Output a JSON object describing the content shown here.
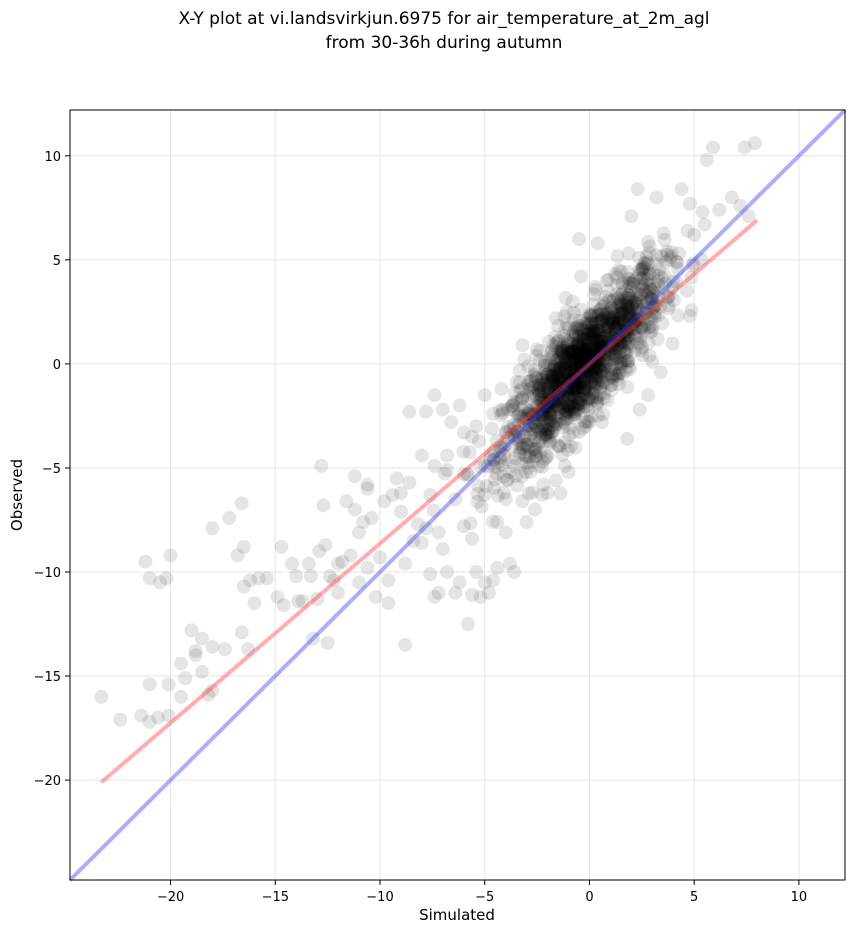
{
  "chart_data": {
    "type": "scatter",
    "title_line1": "X-Y plot at vi.landsvirkjun.6975 for air_temperature_at_2m_agl",
    "title_line2": "from 30-36h during autumn",
    "xlabel": "Simulated",
    "ylabel": "Observed",
    "xlim": [
      -24.8,
      12.2
    ],
    "ylim": [
      -24.8,
      12.2
    ],
    "xticks": [
      -20,
      -15,
      -10,
      -5,
      0,
      5,
      10
    ],
    "yticks": [
      -20,
      -15,
      -10,
      -5,
      0,
      5,
      10
    ],
    "xtick_labels": [
      "−20",
      "−15",
      "−10",
      "−5",
      "0",
      "5",
      "10"
    ],
    "ytick_labels": [
      "−20",
      "−15",
      "−10",
      "−5",
      "0",
      "5",
      "10"
    ],
    "grid": true,
    "point_color": "#000000",
    "point_alpha": 0.1,
    "outlier_points": [
      [
        -23.3,
        -16.0
      ],
      [
        -22.4,
        -17.1
      ],
      [
        -21.4,
        -16.9
      ],
      [
        -21.0,
        -17.2
      ],
      [
        -20.6,
        -17.0
      ],
      [
        -20.1,
        -16.9
      ],
      [
        -21.2,
        -9.5
      ],
      [
        -21.0,
        -10.3
      ],
      [
        -20.5,
        -10.5
      ],
      [
        -20.2,
        -10.3
      ],
      [
        -20.0,
        -9.2
      ],
      [
        -21.0,
        -15.4
      ],
      [
        -20.1,
        -15.4
      ],
      [
        -19.5,
        -16.0
      ],
      [
        -19.3,
        -15.1
      ],
      [
        -19.0,
        -12.8
      ],
      [
        -18.8,
        -13.8
      ],
      [
        -18.5,
        -13.2
      ],
      [
        -18.2,
        -15.9
      ],
      [
        -18.0,
        -15.7
      ],
      [
        -18.0,
        -13.6
      ],
      [
        -19.5,
        -14.4
      ],
      [
        -18.8,
        -14.0
      ],
      [
        -18.5,
        -14.8
      ],
      [
        -18.0,
        -7.9
      ],
      [
        -17.4,
        -13.7
      ],
      [
        -17.2,
        -7.4
      ],
      [
        -16.8,
        -9.2
      ],
      [
        -16.5,
        -8.8
      ],
      [
        -16.5,
        -10.7
      ],
      [
        -16.2,
        -10.4
      ],
      [
        -16.0,
        -11.5
      ],
      [
        -15.8,
        -10.3
      ],
      [
        -16.6,
        -12.9
      ],
      [
        -16.3,
        -13.7
      ],
      [
        -16.6,
        -6.7
      ],
      [
        -15.4,
        -10.3
      ],
      [
        -14.9,
        -11.2
      ],
      [
        -14.6,
        -11.6
      ],
      [
        -14.7,
        -8.8
      ],
      [
        -14.2,
        -9.6
      ],
      [
        -14.0,
        -10.2
      ],
      [
        -13.9,
        -11.4
      ],
      [
        -13.7,
        -11.4
      ],
      [
        -13.4,
        -9.6
      ],
      [
        -13.3,
        -10.2
      ],
      [
        -13.2,
        -13.2
      ],
      [
        -13.0,
        -11.3
      ],
      [
        -12.9,
        -9.0
      ],
      [
        -12.7,
        -6.8
      ],
      [
        -12.6,
        -8.7
      ],
      [
        -12.5,
        -13.4
      ],
      [
        -12.4,
        -10.2
      ],
      [
        -12.2,
        -10.4
      ],
      [
        -12.0,
        -9.6
      ],
      [
        -12.0,
        -11.0
      ],
      [
        -12.8,
        -4.9
      ],
      [
        -11.8,
        -9.5
      ],
      [
        -11.6,
        -6.6
      ],
      [
        -11.4,
        -9.2
      ],
      [
        -11.2,
        -7.0
      ],
      [
        -11.0,
        -10.5
      ],
      [
        -11.0,
        -8.1
      ],
      [
        -10.8,
        -7.6
      ],
      [
        -10.6,
        -9.8
      ],
      [
        -10.6,
        -6.0
      ],
      [
        -10.4,
        -7.4
      ],
      [
        -10.2,
        -11.2
      ],
      [
        -10.0,
        -9.3
      ],
      [
        -9.8,
        -6.6
      ],
      [
        -9.6,
        -10.4
      ],
      [
        -9.6,
        -11.5
      ],
      [
        -9.4,
        -6.3
      ],
      [
        -9.2,
        -5.5
      ],
      [
        -9.0,
        -7.1
      ],
      [
        -8.8,
        -13.5
      ],
      [
        -8.8,
        -9.6
      ],
      [
        -8.6,
        -5.7
      ],
      [
        -10.6,
        -5.8
      ],
      [
        -11.2,
        -5.4
      ],
      [
        -9.0,
        -6.2
      ],
      [
        -8.4,
        -8.5
      ],
      [
        -8.2,
        -7.7
      ],
      [
        -8.0,
        -4.4
      ],
      [
        -7.8,
        -2.3
      ],
      [
        -8.6,
        -2.3
      ],
      [
        -7.6,
        -10.1
      ],
      [
        -7.4,
        -11.2
      ],
      [
        -7.2,
        -11.0
      ],
      [
        -7.0,
        -8.9
      ],
      [
        -6.8,
        -10.0
      ],
      [
        -6.4,
        -11.0
      ],
      [
        -6.2,
        -10.5
      ],
      [
        -5.8,
        -12.5
      ],
      [
        -5.6,
        -11.1
      ],
      [
        -5.4,
        -10.0
      ],
      [
        -5.2,
        -11.2
      ],
      [
        -5.0,
        -10.5
      ],
      [
        -4.8,
        -11.0
      ],
      [
        -4.6,
        -10.4
      ],
      [
        -4.4,
        -9.8
      ],
      [
        -3.8,
        -9.6
      ],
      [
        -3.6,
        -10.0
      ],
      [
        -7.4,
        -1.5
      ],
      [
        -7.0,
        -2.2
      ],
      [
        -6.6,
        -2.8
      ],
      [
        -6.2,
        -2.0
      ],
      [
        -5.6,
        -3.5
      ],
      [
        -5.0,
        -1.5
      ],
      [
        -4.6,
        -2.4
      ],
      [
        -4.2,
        -1.2
      ],
      [
        -3.2,
        0.9
      ],
      [
        -2.8,
        -0.8
      ],
      [
        -1.6,
        2.2
      ],
      [
        -0.8,
        3.0
      ],
      [
        -0.4,
        4.2
      ],
      [
        -0.5,
        6.0
      ],
      [
        0.4,
        5.8
      ],
      [
        2.0,
        7.1
      ],
      [
        2.3,
        8.4
      ],
      [
        3.2,
        8.0
      ],
      [
        4.4,
        8.4
      ],
      [
        5.6,
        9.8
      ],
      [
        5.9,
        10.4
      ],
      [
        7.4,
        10.4
      ],
      [
        7.9,
        10.6
      ],
      [
        4.8,
        7.7
      ],
      [
        5.4,
        7.3
      ],
      [
        6.2,
        7.4
      ],
      [
        6.8,
        8.0
      ],
      [
        7.2,
        7.6
      ],
      [
        7.6,
        7.1
      ],
      [
        5.0,
        6.2
      ],
      [
        4.8,
        2.3
      ],
      [
        1.8,
        -3.6
      ],
      [
        2.4,
        -2.2
      ],
      [
        2.8,
        -1.5
      ],
      [
        3.0,
        0.1
      ],
      [
        3.4,
        -0.4
      ],
      [
        0.6,
        -2.8
      ],
      [
        -1.0,
        -5.2
      ],
      [
        -1.6,
        -5.6
      ],
      [
        -2.0,
        -6.2
      ],
      [
        -2.2,
        -5.8
      ],
      [
        -2.6,
        -7.0
      ],
      [
        -3.0,
        -7.6
      ],
      [
        -3.2,
        -6.6
      ],
      [
        -4.0,
        -8.1
      ],
      [
        -4.4,
        -7.6
      ],
      [
        -3.8,
        -5.2
      ],
      [
        -6.4,
        -6.5
      ],
      [
        -6.0,
        -7.8
      ],
      [
        -5.6,
        -8.4
      ],
      [
        -6.8,
        -5.1
      ],
      [
        -7.2,
        -8.1
      ],
      [
        -7.8,
        -7.9
      ],
      [
        -8.0,
        -8.6
      ],
      [
        -7.6,
        -6.3
      ],
      [
        -7.4,
        -4.9
      ],
      [
        -6.8,
        -4.4
      ],
      [
        -6.0,
        -3.3
      ],
      [
        -5.4,
        -3.0
      ],
      [
        -4.0,
        -6.5
      ],
      [
        -3.6,
        -4.9
      ],
      [
        0.2,
        -1.4
      ]
    ],
    "core_cluster": {
      "count": 1500,
      "x_range": [
        -7.5,
        5.5
      ],
      "slope": 1.0,
      "intercept": 0.2,
      "spread": 1.25
    },
    "lines": [
      {
        "color": "#3333ff",
        "alpha": 0.4,
        "x": [
          -24.8,
          12.2
        ],
        "y": [
          -24.8,
          12.2
        ]
      },
      {
        "color": "#ff3333",
        "alpha": 0.4,
        "x": [
          -23.3,
          8.0
        ],
        "y": [
          -20.1,
          6.9
        ]
      }
    ]
  }
}
